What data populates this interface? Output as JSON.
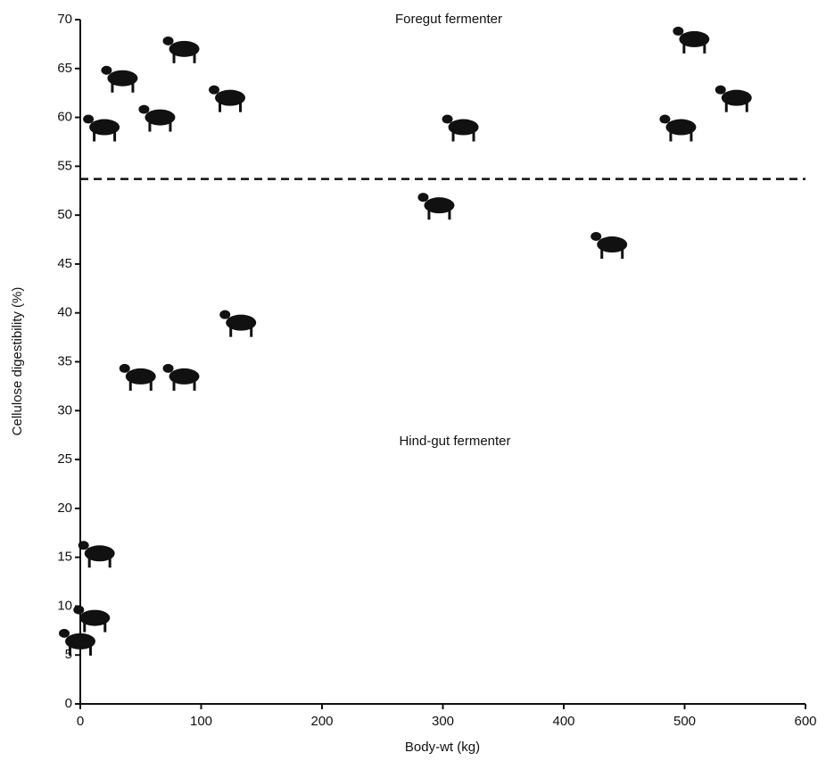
{
  "chart_data": {
    "type": "scatter",
    "x_label": "Body-wt (kg)",
    "y_label": "Cellulose digestibility (%)",
    "annotations": [
      "Foregut fermenter",
      "Hind-gut fermenter"
    ],
    "x": [
      20,
      35,
      66,
      86,
      124,
      317,
      508,
      543,
      497,
      297,
      440,
      133,
      50,
      86,
      16,
      12,
      0
    ],
    "values": [
      59,
      64,
      60,
      67,
      62,
      59,
      68,
      62,
      59,
      51,
      47,
      39,
      33.5,
      33.5,
      15.4,
      8.8,
      6.4
    ],
    "reference_line": 53.7,
    "color": "#111111",
    "xlim": [
      0,
      600
    ],
    "xticks": [
      0,
      100,
      200,
      300,
      400,
      500,
      600
    ],
    "ylim": [
      0,
      70
    ],
    "yticks": [
      0,
      5,
      10,
      15,
      20,
      25,
      30,
      35,
      40,
      45,
      50,
      55,
      60,
      65,
      70
    ]
  }
}
